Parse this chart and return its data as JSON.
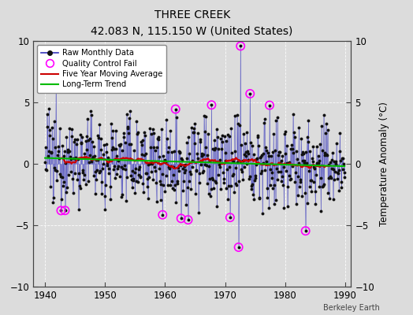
{
  "title": "THREE CREEK",
  "subtitle": "42.083 N, 115.150 W (United States)",
  "ylabel": "Temperature Anomaly (°C)",
  "credit": "Berkeley Earth",
  "xlim": [
    1938,
    1991
  ],
  "ylim": [
    -10,
    10
  ],
  "yticks": [
    -10,
    -5,
    0,
    5,
    10
  ],
  "xticks": [
    1940,
    1950,
    1960,
    1970,
    1980,
    1990
  ],
  "bg_color": "#dcdcdc",
  "raw_line_color": "#3333bb",
  "raw_marker_color": "#111111",
  "ma_color": "#cc0000",
  "trend_color": "#00bb00",
  "qc_color": "#ff00ff",
  "seed": 12345,
  "noise_std": 1.8,
  "n_qc": 14
}
